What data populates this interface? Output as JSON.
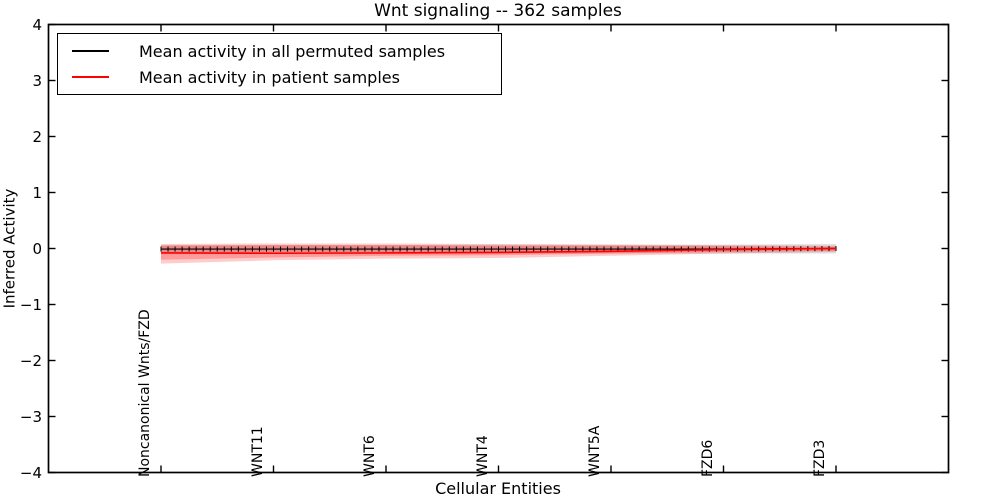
{
  "title": "Wnt signaling -- 362 samples",
  "axes": {
    "ylabel": "Inferred Activity",
    "xlabel": "Cellular Entities",
    "ytick_labels": [
      "4",
      "3",
      "2",
      "1",
      "0",
      "−1",
      "−2",
      "−3",
      "−4"
    ],
    "ytick_values": [
      4,
      3,
      2,
      1,
      0,
      -1,
      -2,
      -3,
      -4
    ]
  },
  "legend": {
    "items": [
      {
        "label": "Mean activity in all permuted samples",
        "color": "#000000"
      },
      {
        "label": "Mean activity in patient samples",
        "color": "#ff0000"
      }
    ]
  },
  "chart_data": {
    "type": "line",
    "title": "Wnt signaling -- 362 samples",
    "xlabel": "Cellular Entities",
    "ylabel": "Inferred Activity",
    "ylim": [
      -4,
      4
    ],
    "grid": false,
    "legend_position": "upper left",
    "categories": [
      "Noncanonical Wnts/FZD",
      "WNT11",
      "WNT6",
      "WNT4",
      "WNT5A",
      "FZD6",
      "FZD3"
    ],
    "series": [
      {
        "name": "Mean activity in all permuted samples",
        "color": "#000000",
        "line_width": 1.2,
        "values": [
          -0.01,
          -0.01,
          -0.01,
          -0.01,
          -0.01,
          -0.01,
          0.0
        ],
        "errorbar_cap_half_height": 0.045,
        "errorbar_cap_count": 97
      },
      {
        "name": "Mean activity in patient samples",
        "color": "#ff0000",
        "line_width": 1.6,
        "values": [
          -0.08,
          -0.085,
          -0.08,
          -0.07,
          -0.05,
          -0.02,
          0.0
        ]
      }
    ],
    "bands": [
      {
        "name": "permuted-samples-spread",
        "color": "#000000",
        "opacity": 0.13,
        "upper": [
          0.06,
          0.06,
          0.06,
          0.07,
          0.07,
          0.07,
          0.08
        ],
        "lower": [
          -0.08,
          -0.08,
          -0.08,
          -0.09,
          -0.09,
          -0.09,
          -0.09
        ]
      },
      {
        "name": "patient-samples-spread-outer",
        "color": "#ff0000",
        "opacity": 0.2,
        "upper": [
          0.08,
          0.09,
          0.09,
          0.08,
          0.07,
          0.06,
          0.05
        ],
        "lower": [
          -0.27,
          -0.21,
          -0.18,
          -0.17,
          -0.13,
          -0.09,
          -0.06
        ]
      },
      {
        "name": "patient-samples-spread-inner",
        "color": "#ff0000",
        "opacity": 0.24,
        "upper": [
          0.05,
          0.06,
          0.06,
          0.05,
          0.05,
          0.04,
          0.03
        ],
        "lower": [
          -0.2,
          -0.16,
          -0.13,
          -0.12,
          -0.09,
          -0.06,
          -0.04
        ]
      }
    ]
  }
}
